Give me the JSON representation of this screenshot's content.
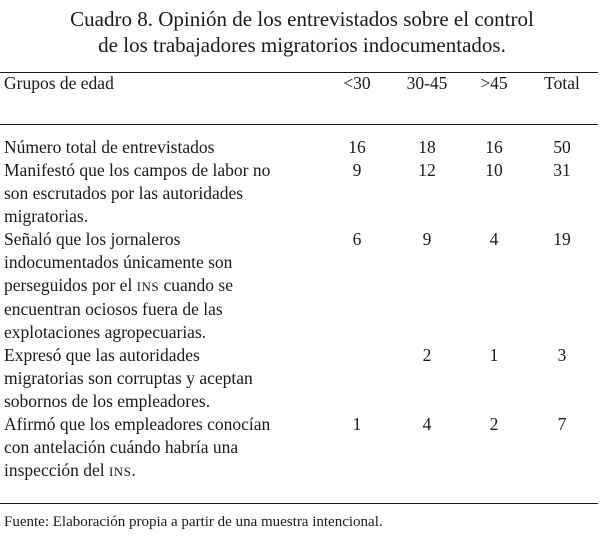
{
  "caption": {
    "line1": "Cuadro 8. Opinión de los entrevistados sobre el control",
    "line2": "de los trabajadores migratorios indocumentados."
  },
  "table": {
    "headers": [
      "Grupos de edad",
      "<30",
      "30-45",
      ">45",
      "Total"
    ],
    "rows": [
      {
        "label_lines": [
          "Número total de entrevistados"
        ],
        "values": [
          "16",
          "18",
          "16",
          "50"
        ]
      },
      {
        "label_lines": [
          "Manifestó que los campos de labor no",
          "son escrutados por las autoridades",
          "migratorias."
        ],
        "values": [
          "9",
          "12",
          "10",
          "31"
        ]
      },
      {
        "label_lines": [
          "Señaló que los jornaleros",
          "indocumentados únicamente son",
          "perseguidos por el ",
          "INS",
          " cuando se",
          "encuentran ociosos fuera de las",
          "explotaciones agropecuarias."
        ],
        "values": [
          "6",
          "9",
          "4",
          "19"
        ]
      },
      {
        "label_lines": [
          "Expresó que las autoridades",
          "migratorias son corruptas y aceptan",
          "sobornos de los empleadores."
        ],
        "values": [
          "",
          "2",
          "1",
          "3"
        ]
      },
      {
        "label_lines": [
          "Afirmó que los empleadores conocían",
          "con antelación cuándo habría una",
          "inspección del ",
          "INS",
          "."
        ],
        "values": [
          "1",
          "4",
          "2",
          "7"
        ]
      }
    ]
  },
  "source": "Fuente: Elaboración propia a partir de una muestra intencional."
}
